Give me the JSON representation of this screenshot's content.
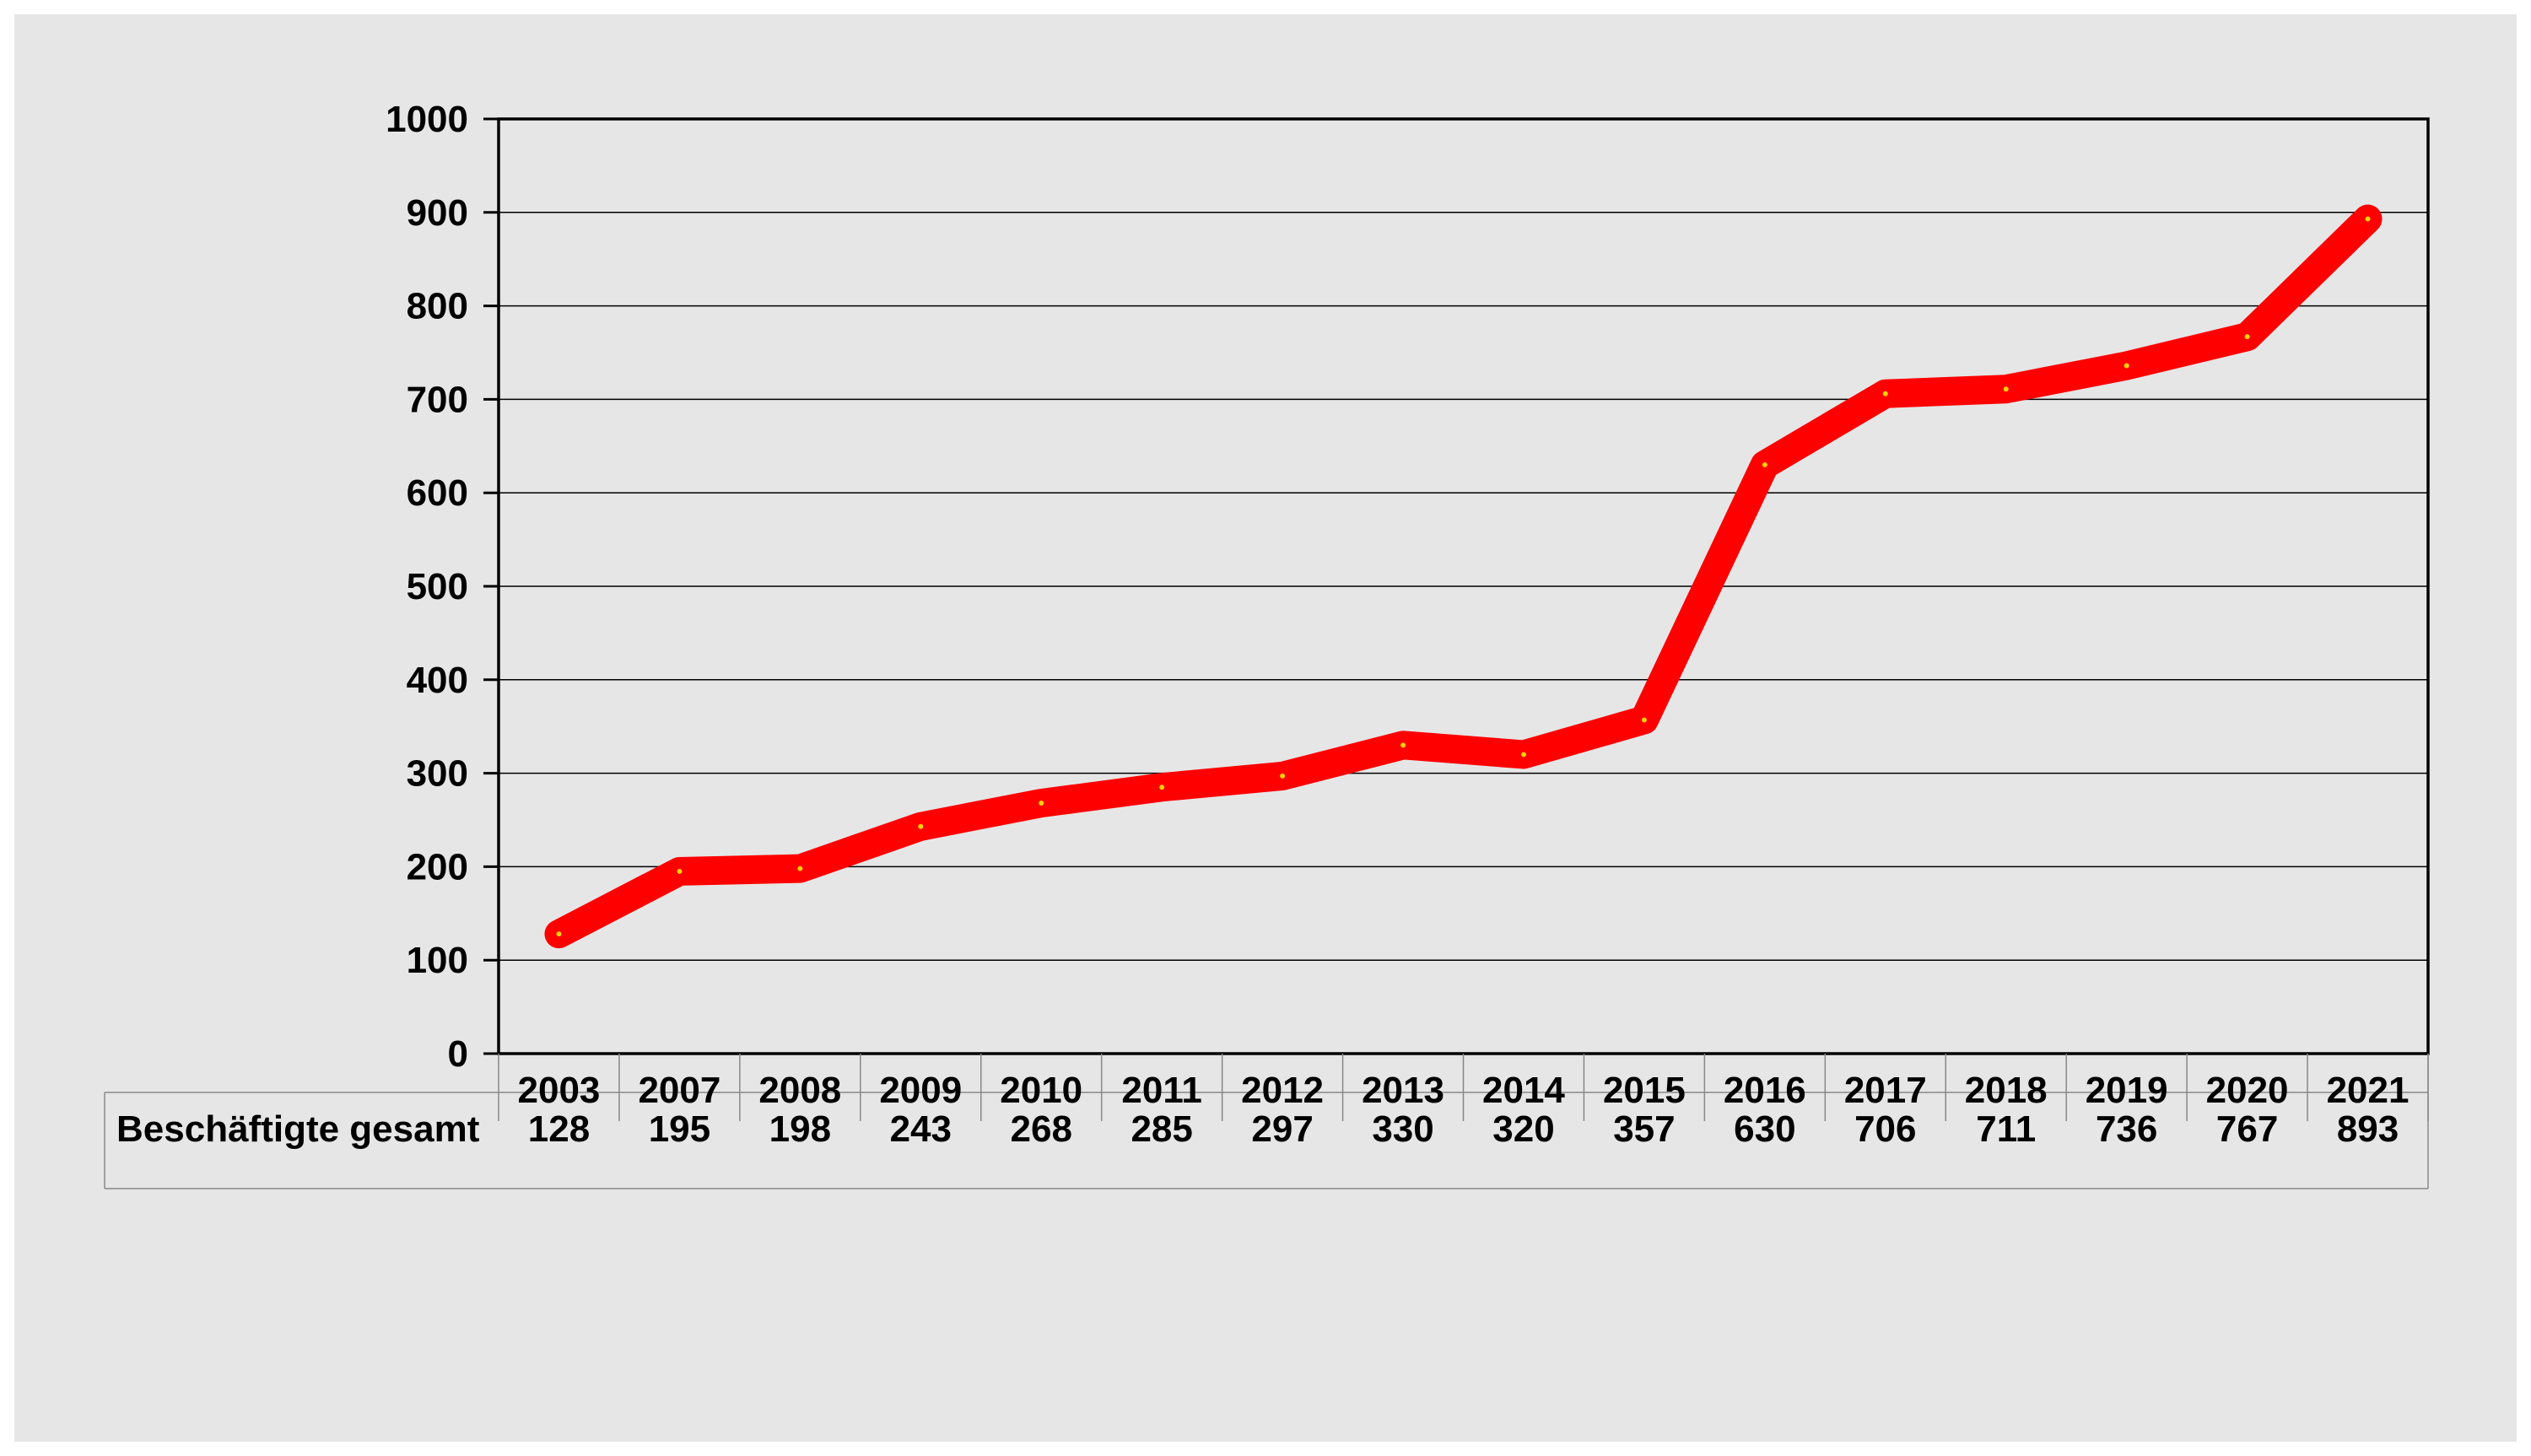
{
  "chart_data": {
    "type": "line",
    "title": "",
    "xlabel": "",
    "ylabel": "",
    "ylim": [
      0,
      1000
    ],
    "yticks": [
      "0",
      "100",
      "200",
      "300",
      "400",
      "500",
      "600",
      "700",
      "800",
      "900",
      "1000"
    ],
    "categories": [
      "2003",
      "2007",
      "2008",
      "2009",
      "2010",
      "2011",
      "2012",
      "2013",
      "2014",
      "2015",
      "2016",
      "2017",
      "2018",
      "2019",
      "2020",
      "2021"
    ],
    "series": [
      {
        "name": "Beschäftigte gesamt",
        "color": "#ff0000",
        "values": [
          128,
          195,
          198,
          243,
          268,
          285,
          297,
          330,
          320,
          357,
          630,
          706,
          711,
          736,
          767,
          893
        ]
      }
    ],
    "grid": true,
    "legend": "data-table-below"
  },
  "colors": {
    "background": "#e6e6e6",
    "line": "#ff0000",
    "grid": "#000000"
  }
}
